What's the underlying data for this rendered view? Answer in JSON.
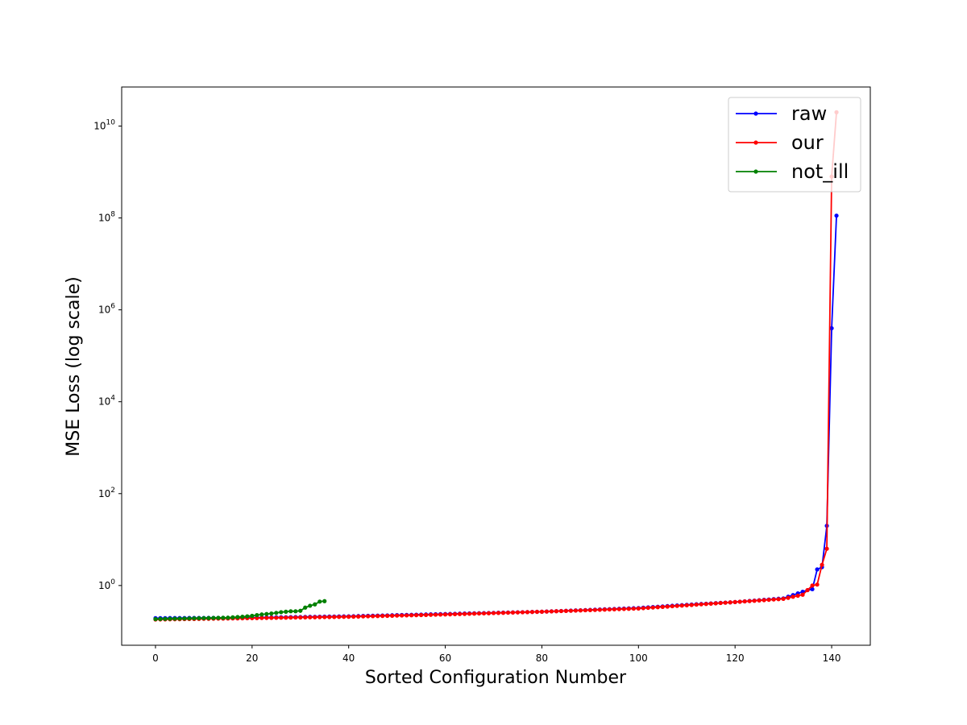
{
  "chart_data": {
    "type": "line",
    "title": "",
    "xlabel": "Sorted Configuration Number",
    "ylabel": "MSE Loss (log scale)",
    "xlim": [
      -7,
      148
    ],
    "ylim_log10": [
      -1.3,
      10.85
    ],
    "yscale": "log",
    "xticks": [
      0,
      20,
      40,
      60,
      80,
      100,
      120,
      140
    ],
    "yticks": [
      {
        "exp": 0,
        "base": "10",
        "power": "0"
      },
      {
        "exp": 2,
        "base": "10",
        "power": "2"
      },
      {
        "exp": 4,
        "base": "10",
        "power": "4"
      },
      {
        "exp": 6,
        "base": "10",
        "power": "6"
      },
      {
        "exp": 8,
        "base": "10",
        "power": "8"
      },
      {
        "exp": 10,
        "base": "10",
        "power": "10"
      }
    ],
    "grid": false,
    "legend_position": "top-right",
    "series": [
      {
        "name": "raw",
        "color": "#0000ff",
        "anchors": [
          [
            0,
            -0.71
          ],
          [
            20,
            -0.7
          ],
          [
            40,
            -0.67
          ],
          [
            60,
            -0.62
          ],
          [
            80,
            -0.57
          ],
          [
            100,
            -0.49
          ],
          [
            110,
            -0.42
          ],
          [
            120,
            -0.36
          ],
          [
            130,
            -0.28
          ],
          [
            135,
            -0.1
          ],
          [
            136,
            -0.08
          ],
          [
            137,
            0.35
          ],
          [
            138,
            0.4
          ],
          [
            139,
            1.3
          ],
          [
            140,
            5.6
          ],
          [
            141,
            8.05
          ]
        ]
      },
      {
        "name": "our",
        "color": "#ff0000",
        "anchors": [
          [
            0,
            -0.74
          ],
          [
            20,
            -0.71
          ],
          [
            40,
            -0.68
          ],
          [
            60,
            -0.63
          ],
          [
            80,
            -0.57
          ],
          [
            100,
            -0.5
          ],
          [
            110,
            -0.43
          ],
          [
            120,
            -0.36
          ],
          [
            130,
            -0.29
          ],
          [
            134,
            -0.2
          ],
          [
            136,
            0.0
          ],
          [
            137,
            0.02
          ],
          [
            138,
            0.45
          ],
          [
            139,
            0.8
          ],
          [
            140,
            8.9
          ],
          [
            141,
            10.3
          ]
        ]
      },
      {
        "name": "not_ill",
        "color": "#008000",
        "anchors": [
          [
            0,
            -0.73
          ],
          [
            5,
            -0.72
          ],
          [
            10,
            -0.71
          ],
          [
            15,
            -0.7
          ],
          [
            18,
            -0.68
          ],
          [
            20,
            -0.66
          ],
          [
            22,
            -0.63
          ],
          [
            24,
            -0.61
          ],
          [
            26,
            -0.58
          ],
          [
            28,
            -0.56
          ],
          [
            29,
            -0.56
          ],
          [
            30,
            -0.55
          ],
          [
            31,
            -0.48
          ],
          [
            32,
            -0.44
          ],
          [
            33,
            -0.41
          ],
          [
            34,
            -0.35
          ],
          [
            35,
            -0.34
          ]
        ]
      }
    ]
  }
}
